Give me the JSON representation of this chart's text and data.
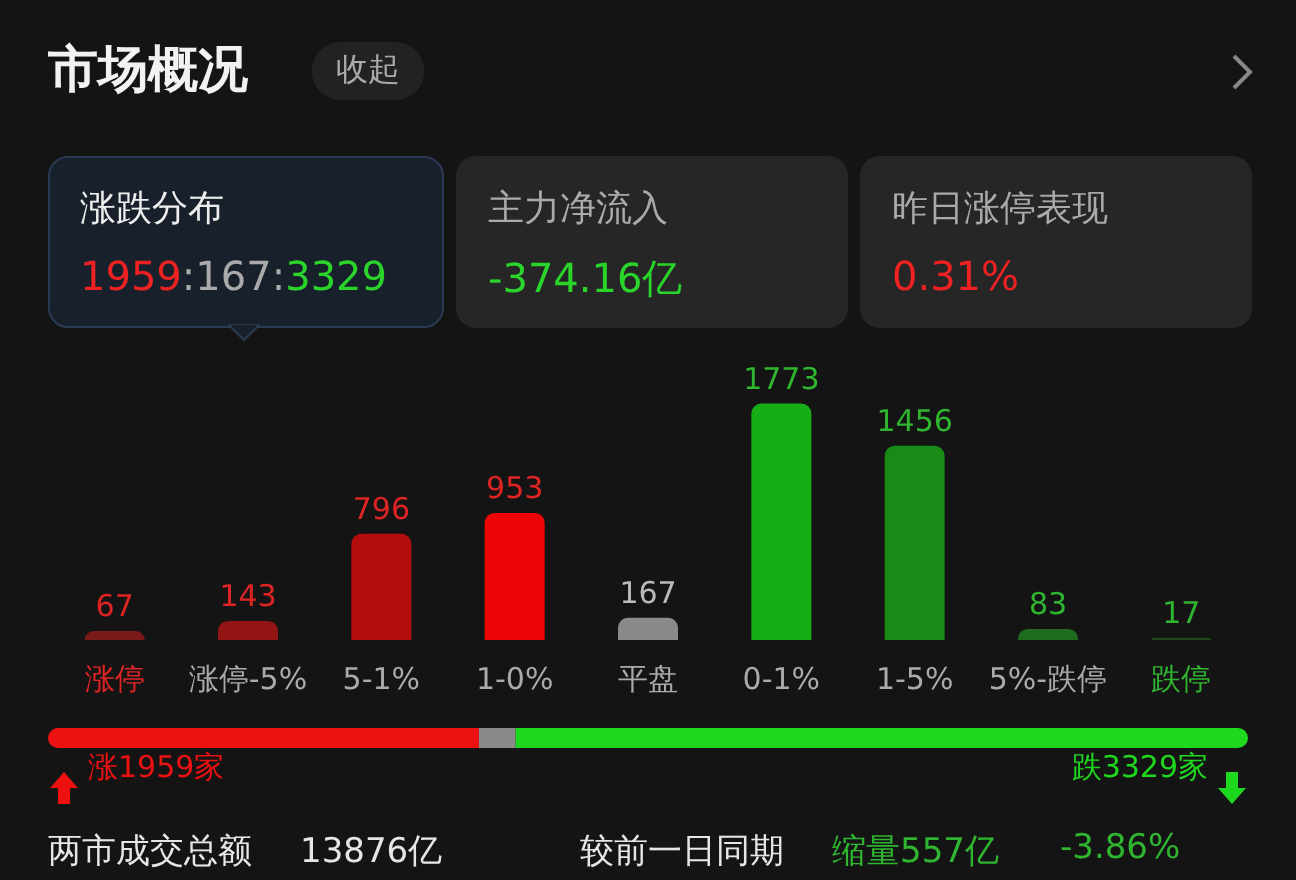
{
  "chart_data": [
    {
      "type": "bar",
      "title": "市场概况",
      "annotations": [
        "收起",
        "涨跌分布",
        "1959:167:3329",
        "主力净流入",
        "-374.16亿",
        "昨日涨停表现",
        "0.31%"
      ],
      "categories": [
        "涨停",
        "涨停-5%",
        "5-1%",
        "1-0%",
        "平盘",
        "0-1%",
        "1-5%",
        "5%-跌停",
        "跌停"
      ],
      "values": [
        67,
        143,
        796,
        953,
        167,
        1773,
        1456,
        83,
        17
      ],
      "colors": [
        "#7a1a1a",
        "#931414",
        "#b50c0c",
        "#ee0606",
        "#8a8a8a",
        "#16ad16",
        "#178a17",
        "#1f6b1f",
        "#1f451f"
      ],
      "data_labels": true
    },
    {
      "type": "bar",
      "orientation": "horizontal",
      "stacked": true,
      "categories": [
        null
      ],
      "series": [
        {
          "color": "#ee1111",
          "values": [
            1959
          ],
          "value_labels": [
            "涨1959家"
          ]
        },
        {
          "color": "#8a8a8a",
          "values": [
            167
          ],
          "value_labels": [
            null
          ]
        },
        {
          "color": "#1ed81e",
          "values": [
            3329
          ],
          "value_labels": [
            "跌3329家"
          ]
        }
      ],
      "annotations": [
        "两市成交总额",
        "13876亿",
        "较前一日同期",
        "缩量557亿",
        "-3.86%"
      ],
      "tick_labels": false
    }
  ]
}
